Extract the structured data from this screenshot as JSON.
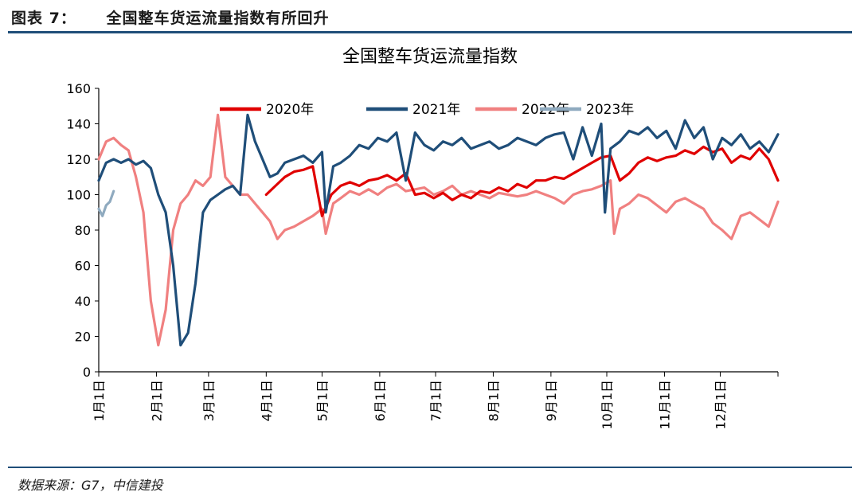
{
  "header": {
    "fig_label": "图表 7：",
    "title": "全国整车货运流量指数有所回升"
  },
  "source": "数据来源：G7，中信建投",
  "chart_data": {
    "type": "line",
    "title": "全国整车货运流量指数",
    "xlabel": "",
    "ylabel": "",
    "xlim": [
      1,
      366
    ],
    "ylim": [
      0,
      160
    ],
    "yticks": [
      0,
      20,
      40,
      60,
      80,
      100,
      120,
      140,
      160
    ],
    "xticks": [
      {
        "label": "1月1日",
        "x": 1
      },
      {
        "label": "2月1日",
        "x": 32
      },
      {
        "label": "3月1日",
        "x": 60
      },
      {
        "label": "4月1日",
        "x": 91
      },
      {
        "label": "5月1日",
        "x": 121
      },
      {
        "label": "6月1日",
        "x": 152
      },
      {
        "label": "7月1日",
        "x": 182
      },
      {
        "label": "8月1日",
        "x": 213
      },
      {
        "label": "9月1日",
        "x": 244
      },
      {
        "label": "10月1日",
        "x": 274
      },
      {
        "label": "11月1日",
        "x": 305
      },
      {
        "label": "12月1日",
        "x": 335
      }
    ],
    "grid": false,
    "legend": "top-center",
    "series": [
      {
        "name": "2020年",
        "color": "#e00000",
        "width": 3.2,
        "x": [
          91,
          96,
          101,
          106,
          111,
          116,
          121,
          126,
          131,
          136,
          141,
          146,
          151,
          156,
          161,
          166,
          171,
          176,
          181,
          186,
          191,
          196,
          201,
          206,
          211,
          216,
          221,
          226,
          231,
          236,
          241,
          246,
          251,
          256,
          261,
          266,
          271,
          276,
          281,
          286,
          291,
          296,
          301,
          306,
          311,
          316,
          321,
          326,
          331,
          336,
          341,
          346,
          351,
          356,
          361,
          366
        ],
        "y": [
          100,
          105,
          110,
          113,
          114,
          116,
          88,
          100,
          105,
          107,
          105,
          108,
          109,
          111,
          108,
          112,
          100,
          101,
          98,
          101,
          97,
          100,
          98,
          102,
          101,
          104,
          102,
          106,
          104,
          108,
          108,
          110,
          109,
          112,
          115,
          118,
          121,
          122,
          108,
          112,
          118,
          121,
          119,
          121,
          122,
          125,
          123,
          127,
          124,
          126,
          118,
          122,
          120,
          126,
          120,
          108
        ]
      },
      {
        "name": "2021年",
        "color": "#1f4e79",
        "width": 3.2,
        "x": [
          1,
          5,
          9,
          13,
          17,
          21,
          25,
          29,
          33,
          37,
          41,
          45,
          49,
          53,
          57,
          61,
          65,
          69,
          73,
          77,
          81,
          85,
          89,
          93,
          97,
          101,
          106,
          111,
          116,
          121,
          123,
          127,
          131,
          136,
          141,
          146,
          151,
          156,
          161,
          166,
          171,
          176,
          181,
          186,
          191,
          196,
          201,
          206,
          211,
          216,
          221,
          226,
          231,
          236,
          241,
          246,
          251,
          256,
          261,
          266,
          271,
          273,
          276,
          281,
          286,
          291,
          296,
          301,
          306,
          311,
          316,
          321,
          326,
          331,
          336,
          341,
          346,
          351,
          356,
          361,
          366
        ],
        "y": [
          108,
          118,
          120,
          118,
          120,
          117,
          119,
          115,
          100,
          90,
          60,
          15,
          22,
          50,
          90,
          97,
          100,
          103,
          105,
          100,
          145,
          130,
          120,
          110,
          112,
          118,
          120,
          122,
          118,
          124,
          90,
          116,
          118,
          122,
          128,
          126,
          132,
          130,
          135,
          108,
          135,
          128,
          125,
          130,
          128,
          132,
          126,
          128,
          130,
          126,
          128,
          132,
          130,
          128,
          132,
          134,
          135,
          120,
          138,
          122,
          140,
          90,
          126,
          130,
          136,
          134,
          138,
          132,
          136,
          126,
          142,
          132,
          138,
          120,
          132,
          128,
          134,
          126,
          130,
          124,
          134
        ]
      },
      {
        "name": "2022年",
        "color": "#f08080",
        "width": 3.2,
        "x": [
          1,
          5,
          9,
          13,
          17,
          21,
          25,
          29,
          33,
          37,
          41,
          45,
          49,
          53,
          57,
          61,
          65,
          69,
          73,
          77,
          81,
          85,
          89,
          93,
          97,
          101,
          106,
          111,
          116,
          121,
          123,
          127,
          131,
          136,
          141,
          146,
          151,
          156,
          161,
          166,
          171,
          176,
          181,
          186,
          191,
          196,
          201,
          206,
          211,
          216,
          221,
          226,
          231,
          236,
          241,
          246,
          251,
          256,
          261,
          266,
          271,
          276,
          278,
          281,
          286,
          291,
          296,
          301,
          306,
          311,
          316,
          321,
          326,
          331,
          336,
          341,
          346,
          351,
          356,
          361,
          366
        ],
        "y": [
          120,
          130,
          132,
          128,
          125,
          110,
          90,
          40,
          15,
          35,
          80,
          95,
          100,
          108,
          105,
          110,
          145,
          110,
          105,
          100,
          100,
          95,
          90,
          85,
          75,
          80,
          82,
          85,
          88,
          92,
          78,
          95,
          98,
          102,
          100,
          103,
          100,
          104,
          106,
          102,
          103,
          104,
          100,
          102,
          105,
          100,
          102,
          100,
          98,
          101,
          100,
          99,
          100,
          102,
          100,
          98,
          95,
          100,
          102,
          103,
          105,
          108,
          78,
          92,
          95,
          100,
          98,
          94,
          90,
          96,
          98,
          95,
          92,
          84,
          80,
          75,
          88,
          90,
          86,
          82,
          96
        ]
      },
      {
        "name": "2023年",
        "color": "#8faabf",
        "width": 3.2,
        "x": [
          1,
          3,
          5,
          7,
          9
        ],
        "y": [
          92,
          88,
          94,
          96,
          102
        ]
      }
    ]
  }
}
